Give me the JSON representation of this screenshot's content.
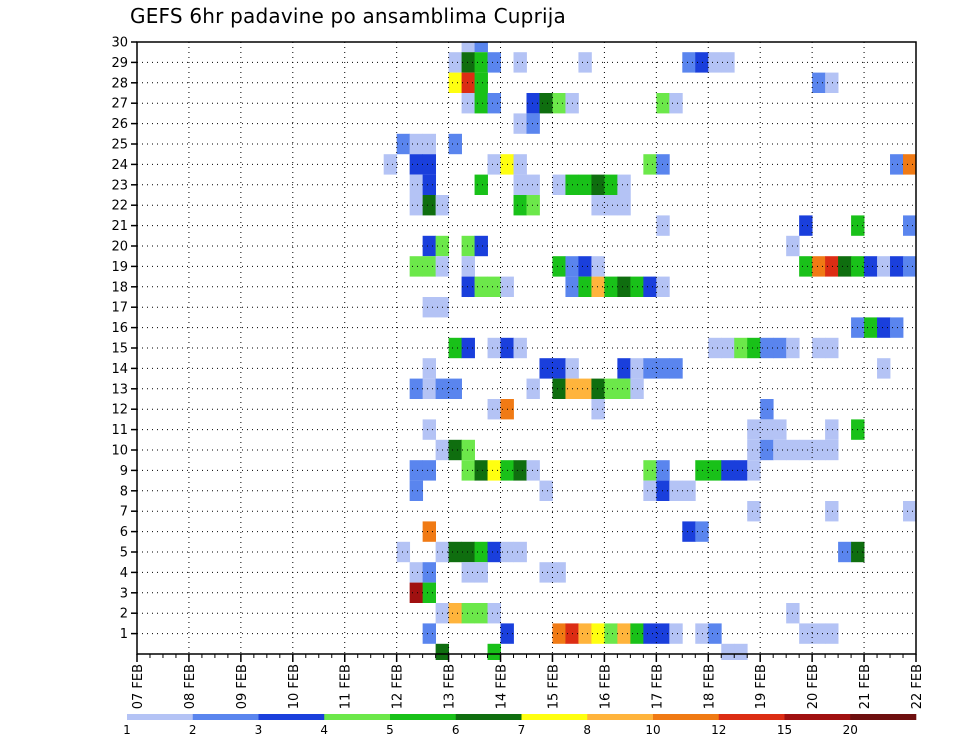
{
  "chart_data": {
    "type": "heatmap",
    "title": "GEFS 6hr padavine po ansamblima Cuprija",
    "xlabel": "",
    "ylabel": "",
    "x_ticks": [
      "07 FEB",
      "08 FEB",
      "09 FEB",
      "10 FEB",
      "11 FEB",
      "12 FEB",
      "13 FEB",
      "14 FEB",
      "15 FEB",
      "16 FEB",
      "17 FEB",
      "18 FEB",
      "19 FEB",
      "20 FEB",
      "21 FEB",
      "22 FEB"
    ],
    "x_range_days": [
      7,
      22
    ],
    "y_ticks": [
      1,
      2,
      3,
      4,
      5,
      6,
      7,
      8,
      9,
      10,
      11,
      12,
      13,
      14,
      15,
      16,
      17,
      18,
      19,
      20,
      21,
      22,
      23,
      24,
      25,
      26,
      27,
      28,
      29,
      30
    ],
    "y_range": [
      0,
      30
    ],
    "grid": true,
    "legend": "bottom",
    "colorbar": {
      "labels": [
        "1",
        "2",
        "3",
        "4",
        "5",
        "6",
        "7",
        "8",
        "10",
        "12",
        "15",
        "20"
      ],
      "colors": [
        "#b4c3f5",
        "#5a85ee",
        "#1a3fdc",
        "#6ce84a",
        "#19c119",
        "#0f6e0f",
        "#ffff10",
        "#ffb43c",
        "#f07a14",
        "#dc2d14",
        "#a01010",
        "#6e0f0f"
      ]
    },
    "cell_legend": "each cell: [day of February at start of 6-hour step, ensemble member, color class 1-12 as in colorbar]",
    "cells": [
      [
        13.25,
        30,
        1
      ],
      [
        13.5,
        30,
        2
      ],
      [
        13,
        29,
        1
      ],
      [
        13.25,
        29,
        6
      ],
      [
        13.5,
        29,
        5
      ],
      [
        13.75,
        29,
        2
      ],
      [
        14.25,
        29,
        1
      ],
      [
        15.5,
        29,
        1
      ],
      [
        17.5,
        29,
        2
      ],
      [
        17.75,
        29,
        3
      ],
      [
        18,
        29,
        1
      ],
      [
        18.25,
        29,
        1
      ],
      [
        13,
        28,
        7
      ],
      [
        13.25,
        28,
        10
      ],
      [
        13.5,
        28,
        5
      ],
      [
        20,
        28,
        2
      ],
      [
        20.25,
        28,
        1
      ],
      [
        13.25,
        27,
        1
      ],
      [
        13.5,
        27,
        5
      ],
      [
        13.75,
        27,
        2
      ],
      [
        14.5,
        27,
        3
      ],
      [
        14.75,
        27,
        6
      ],
      [
        15,
        27,
        4
      ],
      [
        15.25,
        27,
        1
      ],
      [
        17,
        27,
        4
      ],
      [
        17.25,
        27,
        1
      ],
      [
        14.25,
        26,
        1
      ],
      [
        14.5,
        26,
        2
      ],
      [
        12,
        25,
        2
      ],
      [
        12.25,
        25,
        1
      ],
      [
        12.5,
        25,
        1
      ],
      [
        13,
        25,
        2
      ],
      [
        11.75,
        24,
        1
      ],
      [
        12.25,
        24,
        3
      ],
      [
        12.5,
        24,
        3
      ],
      [
        13.75,
        24,
        1
      ],
      [
        14,
        24,
        7
      ],
      [
        14.25,
        24,
        1
      ],
      [
        16.75,
        24,
        4
      ],
      [
        17,
        24,
        2
      ],
      [
        21.5,
        24,
        2
      ],
      [
        21.75,
        24,
        9
      ],
      [
        12.25,
        23,
        1
      ],
      [
        12.5,
        23,
        3
      ],
      [
        13.5,
        23,
        5
      ],
      [
        14.25,
        23,
        1
      ],
      [
        14.5,
        23,
        1
      ],
      [
        15,
        23,
        1
      ],
      [
        15.25,
        23,
        5
      ],
      [
        15.5,
        23,
        5
      ],
      [
        15.75,
        23,
        6
      ],
      [
        16,
        23,
        5
      ],
      [
        16.25,
        23,
        1
      ],
      [
        12.25,
        22,
        1
      ],
      [
        12.5,
        22,
        6
      ],
      [
        12.75,
        22,
        1
      ],
      [
        14.25,
        22,
        5
      ],
      [
        14.5,
        22,
        4
      ],
      [
        15.75,
        22,
        1
      ],
      [
        16,
        22,
        1
      ],
      [
        16.25,
        22,
        1
      ],
      [
        17,
        21,
        1
      ],
      [
        19.75,
        21,
        3
      ],
      [
        20.75,
        21,
        5
      ],
      [
        21.75,
        21,
        2
      ],
      [
        12.5,
        20,
        3
      ],
      [
        12.75,
        20,
        4
      ],
      [
        13.25,
        20,
        4
      ],
      [
        13.5,
        20,
        3
      ],
      [
        19.5,
        20,
        1
      ],
      [
        12.25,
        19,
        4
      ],
      [
        12.5,
        19,
        4
      ],
      [
        12.75,
        19,
        1
      ],
      [
        13.25,
        19,
        1
      ],
      [
        15,
        19,
        5
      ],
      [
        15.25,
        19,
        2
      ],
      [
        15.5,
        19,
        3
      ],
      [
        15.75,
        19,
        1
      ],
      [
        19.75,
        19,
        5
      ],
      [
        20,
        19,
        9
      ],
      [
        20.25,
        19,
        10
      ],
      [
        20.5,
        19,
        6
      ],
      [
        20.75,
        19,
        5
      ],
      [
        21,
        19,
        3
      ],
      [
        21.25,
        19,
        1
      ],
      [
        21.5,
        19,
        3
      ],
      [
        21.75,
        19,
        2
      ],
      [
        13.25,
        18,
        3
      ],
      [
        13.5,
        18,
        4
      ],
      [
        13.75,
        18,
        4
      ],
      [
        14,
        18,
        1
      ],
      [
        15.25,
        18,
        2
      ],
      [
        15.5,
        18,
        5
      ],
      [
        15.75,
        18,
        8
      ],
      [
        16,
        18,
        5
      ],
      [
        16.25,
        18,
        6
      ],
      [
        16.5,
        18,
        5
      ],
      [
        16.75,
        18,
        3
      ],
      [
        17,
        18,
        1
      ],
      [
        12.5,
        17,
        1
      ],
      [
        12.75,
        17,
        1
      ],
      [
        20.75,
        16,
        2
      ],
      [
        21,
        16,
        5
      ],
      [
        21.25,
        16,
        3
      ],
      [
        21.5,
        16,
        2
      ],
      [
        13,
        15,
        5
      ],
      [
        13.25,
        15,
        3
      ],
      [
        13.75,
        15,
        1
      ],
      [
        14,
        15,
        3
      ],
      [
        14.25,
        15,
        1
      ],
      [
        18,
        15,
        1
      ],
      [
        18.25,
        15,
        1
      ],
      [
        18.5,
        15,
        4
      ],
      [
        18.75,
        15,
        5
      ],
      [
        19,
        15,
        2
      ],
      [
        19.25,
        15,
        2
      ],
      [
        19.5,
        15,
        1
      ],
      [
        20,
        15,
        1
      ],
      [
        20.25,
        15,
        1
      ],
      [
        12.5,
        14,
        1
      ],
      [
        14.75,
        14,
        3
      ],
      [
        15,
        14,
        3
      ],
      [
        15.25,
        14,
        1
      ],
      [
        16.25,
        14,
        3
      ],
      [
        16.5,
        14,
        1
      ],
      [
        16.75,
        14,
        2
      ],
      [
        17,
        14,
        2
      ],
      [
        17.25,
        14,
        2
      ],
      [
        21.25,
        14,
        1
      ],
      [
        12.25,
        13,
        2
      ],
      [
        12.5,
        13,
        1
      ],
      [
        12.75,
        13,
        2
      ],
      [
        13,
        13,
        2
      ],
      [
        14.5,
        13,
        1
      ],
      [
        15,
        13,
        6
      ],
      [
        15.25,
        13,
        8
      ],
      [
        15.5,
        13,
        8
      ],
      [
        15.75,
        13,
        6
      ],
      [
        16,
        13,
        4
      ],
      [
        16.25,
        13,
        4
      ],
      [
        16.5,
        13,
        1
      ],
      [
        13.75,
        12,
        1
      ],
      [
        14,
        12,
        9
      ],
      [
        15.75,
        12,
        1
      ],
      [
        19,
        12,
        2
      ],
      [
        12.5,
        11,
        1
      ],
      [
        18.75,
        11,
        1
      ],
      [
        19,
        11,
        1
      ],
      [
        19.25,
        11,
        1
      ],
      [
        20.25,
        11,
        1
      ],
      [
        20.75,
        11,
        5
      ],
      [
        12.75,
        10,
        1
      ],
      [
        13,
        10,
        6
      ],
      [
        13.25,
        10,
        4
      ],
      [
        18.75,
        10,
        1
      ],
      [
        19,
        10,
        2
      ],
      [
        19.25,
        10,
        1
      ],
      [
        19.5,
        10,
        1
      ],
      [
        19.75,
        10,
        1
      ],
      [
        20,
        10,
        1
      ],
      [
        20.25,
        10,
        1
      ],
      [
        12.25,
        9,
        2
      ],
      [
        12.5,
        9,
        2
      ],
      [
        13.25,
        9,
        4
      ],
      [
        13.5,
        9,
        6
      ],
      [
        13.75,
        9,
        7
      ],
      [
        14,
        9,
        5
      ],
      [
        14.25,
        9,
        6
      ],
      [
        14.5,
        9,
        1
      ],
      [
        16.75,
        9,
        4
      ],
      [
        17,
        9,
        2
      ],
      [
        17.75,
        9,
        5
      ],
      [
        18,
        9,
        5
      ],
      [
        18.25,
        9,
        3
      ],
      [
        18.5,
        9,
        3
      ],
      [
        18.75,
        9,
        1
      ],
      [
        12.25,
        8,
        2
      ],
      [
        14.75,
        8,
        1
      ],
      [
        16.75,
        8,
        1
      ],
      [
        17,
        8,
        3
      ],
      [
        17.25,
        8,
        1
      ],
      [
        17.5,
        8,
        1
      ],
      [
        18.75,
        7,
        1
      ],
      [
        20.25,
        7,
        1
      ],
      [
        21.75,
        7,
        1
      ],
      [
        12.5,
        6,
        9
      ],
      [
        17.5,
        6,
        3
      ],
      [
        17.75,
        6,
        2
      ],
      [
        12,
        5,
        1
      ],
      [
        12.75,
        5,
        1
      ],
      [
        13,
        5,
        6
      ],
      [
        13.25,
        5,
        6
      ],
      [
        13.5,
        5,
        5
      ],
      [
        13.75,
        5,
        3
      ],
      [
        14,
        5,
        1
      ],
      [
        14.25,
        5,
        1
      ],
      [
        20.5,
        5,
        2
      ],
      [
        20.75,
        5,
        6
      ],
      [
        12.25,
        4,
        1
      ],
      [
        12.5,
        4,
        2
      ],
      [
        13.25,
        4,
        1
      ],
      [
        13.5,
        4,
        1
      ],
      [
        14.75,
        4,
        1
      ],
      [
        15,
        4,
        1
      ],
      [
        12.25,
        3,
        11
      ],
      [
        12.5,
        3,
        5
      ],
      [
        12.75,
        2,
        1
      ],
      [
        13,
        2,
        8
      ],
      [
        13.25,
        2,
        4
      ],
      [
        13.5,
        2,
        4
      ],
      [
        13.75,
        2,
        1
      ],
      [
        19.5,
        2,
        1
      ],
      [
        12.5,
        1,
        2
      ],
      [
        14,
        1,
        3
      ],
      [
        15,
        1,
        9
      ],
      [
        15.25,
        1,
        10
      ],
      [
        15.5,
        1,
        8
      ],
      [
        15.75,
        1,
        7
      ],
      [
        16,
        1,
        4
      ],
      [
        16.25,
        1,
        8
      ],
      [
        16.5,
        1,
        5
      ],
      [
        16.75,
        1,
        3
      ],
      [
        17,
        1,
        3
      ],
      [
        17.25,
        1,
        1
      ],
      [
        17.75,
        1,
        1
      ],
      [
        18,
        1,
        2
      ],
      [
        19.75,
        1,
        1
      ],
      [
        20,
        1,
        1
      ],
      [
        20.25,
        1,
        1
      ],
      [
        12.75,
        0,
        6
      ],
      [
        13.75,
        0,
        5
      ],
      [
        18.25,
        0,
        1
      ],
      [
        18.5,
        0,
        1
      ]
    ]
  }
}
